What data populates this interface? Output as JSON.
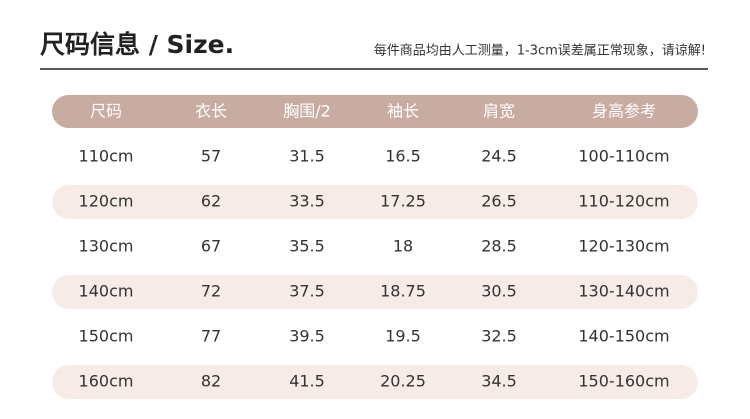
{
  "header": {
    "title": "尺码信息 / Size.",
    "note": "每件商品均由人工测量，1-3cm误差属正常现象，请谅解!"
  },
  "table": {
    "columns": [
      "尺码",
      "衣长",
      "胸围/2",
      "袖长",
      "肩宽",
      "身高参考"
    ],
    "rows": [
      [
        "110cm",
        "57",
        "31.5",
        "16.5",
        "24.5",
        "100-110cm"
      ],
      [
        "120cm",
        "62",
        "33.5",
        "17.25",
        "26.5",
        "110-120cm"
      ],
      [
        "130cm",
        "67",
        "35.5",
        "18",
        "28.5",
        "120-130cm"
      ],
      [
        "140cm",
        "72",
        "37.5",
        "18.75",
        "30.5",
        "130-140cm"
      ],
      [
        "150cm",
        "77",
        "39.5",
        "19.5",
        "32.5",
        "140-150cm"
      ],
      [
        "160cm",
        "82",
        "41.5",
        "20.25",
        "34.5",
        "150-160cm"
      ]
    ]
  }
}
